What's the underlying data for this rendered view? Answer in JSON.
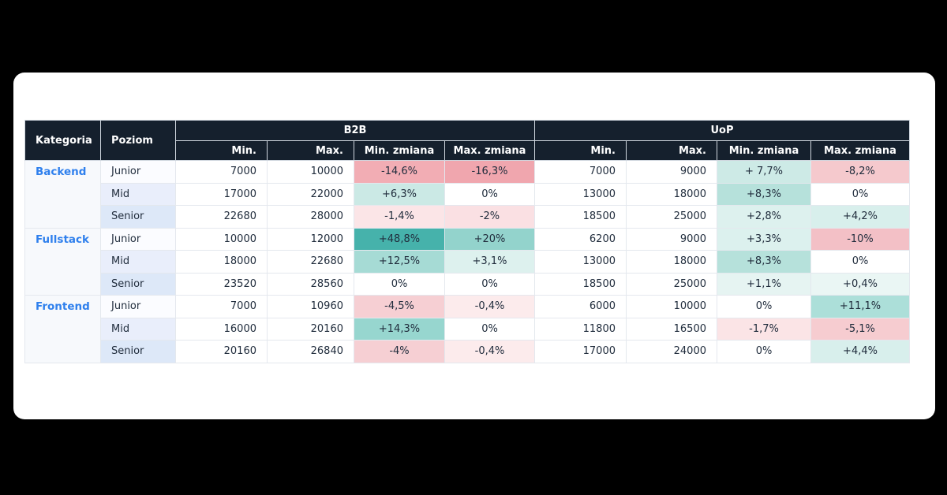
{
  "page": {
    "background": "#000000",
    "card_background": "#ffffff"
  },
  "chart_data": {
    "type": "table",
    "header": {
      "kategoria": "Kategoria",
      "poziom": "Poziom",
      "groups": [
        {
          "label": "B2B",
          "columns": [
            "Min.",
            "Max.",
            "Min. zmiana",
            "Max. zmiana"
          ]
        },
        {
          "label": "UoP",
          "columns": [
            "Min.",
            "Max.",
            "Min. zmiana",
            "Max. zmiana"
          ]
        }
      ]
    },
    "groups": [
      {
        "category": "Backend",
        "rows": [
          {
            "level": "Junior",
            "b2b": {
              "min": "7000",
              "max": "10000",
              "min_zmiana": {
                "text": "-14,6%",
                "bg": "#F2ADB4"
              },
              "max_zmiana": {
                "text": "-16,3%",
                "bg": "#F0A6AE"
              }
            },
            "uop": {
              "min": "7000",
              "max": "9000",
              "min_zmiana": {
                "text": "+ 7,7%",
                "bg": "#CDEAE6"
              },
              "max_zmiana": {
                "text": "-8,2%",
                "bg": "#F5C9CD"
              }
            }
          },
          {
            "level": "Mid",
            "b2b": {
              "min": "17000",
              "max": "22000",
              "min_zmiana": {
                "text": "+6,3%",
                "bg": "#CBE9E5"
              },
              "max_zmiana": {
                "text": "0%",
                "bg": "#FFFFFF"
              }
            },
            "uop": {
              "min": "13000",
              "max": "18000",
              "min_zmiana": {
                "text": "+8,3%",
                "bg": "#B6E1DB"
              },
              "max_zmiana": {
                "text": "0%",
                "bg": "#FFFFFF"
              }
            }
          },
          {
            "level": "Senior",
            "b2b": {
              "min": "22680",
              "max": "28000",
              "min_zmiana": {
                "text": "-1,4%",
                "bg": "#FBE5E7"
              },
              "max_zmiana": {
                "text": "-2%",
                "bg": "#FAE0E3"
              }
            },
            "uop": {
              "min": "18500",
              "max": "25000",
              "min_zmiana": {
                "text": "+2,8%",
                "bg": "#DDF1EE"
              },
              "max_zmiana": {
                "text": "+4,2%",
                "bg": "#D8EFEC"
              }
            }
          }
        ]
      },
      {
        "category": "Fullstack",
        "rows": [
          {
            "level": "Junior",
            "b2b": {
              "min": "10000",
              "max": "12000",
              "min_zmiana": {
                "text": "+48,8%",
                "bg": "#46B2AB"
              },
              "max_zmiana": {
                "text": "+20%",
                "bg": "#93D3CC"
              }
            },
            "uop": {
              "min": "6200",
              "max": "9000",
              "min_zmiana": {
                "text": "+3,3%",
                "bg": "#DCF1EE"
              },
              "max_zmiana": {
                "text": "-10%",
                "bg": "#F3C0C6"
              }
            }
          },
          {
            "level": "Mid",
            "b2b": {
              "min": "18000",
              "max": "22680",
              "min_zmiana": {
                "text": "+12,5%",
                "bg": "#A6DBD5"
              },
              "max_zmiana": {
                "text": "+3,1%",
                "bg": "#DDF1EE"
              }
            },
            "uop": {
              "min": "13000",
              "max": "18000",
              "min_zmiana": {
                "text": "+8,3%",
                "bg": "#B6E1DB"
              },
              "max_zmiana": {
                "text": "0%",
                "bg": "#FFFFFF"
              }
            }
          },
          {
            "level": "Senior",
            "b2b": {
              "min": "23520",
              "max": "28560",
              "min_zmiana": {
                "text": "0%",
                "bg": "#FFFFFF"
              },
              "max_zmiana": {
                "text": "0%",
                "bg": "#FFFFFF"
              }
            },
            "uop": {
              "min": "18500",
              "max": "25000",
              "min_zmiana": {
                "text": "+1,1%",
                "bg": "#E6F4F2"
              },
              "max_zmiana": {
                "text": "+0,4%",
                "bg": "#EAF6F4"
              }
            }
          }
        ]
      },
      {
        "category": "Frontend",
        "rows": [
          {
            "level": "Junior",
            "b2b": {
              "min": "7000",
              "max": "10960",
              "min_zmiana": {
                "text": "-4,5%",
                "bg": "#F6CFD3"
              },
              "max_zmiana": {
                "text": "-0,4%",
                "bg": "#FCEBEC"
              }
            },
            "uop": {
              "min": "6000",
              "max": "10000",
              "min_zmiana": {
                "text": "0%",
                "bg": "#FFFFFF"
              },
              "max_zmiana": {
                "text": "+11,1%",
                "bg": "#ACDFD9"
              }
            }
          },
          {
            "level": "Mid",
            "b2b": {
              "min": "16000",
              "max": "20160",
              "min_zmiana": {
                "text": "+14,3%",
                "bg": "#97D6CF"
              },
              "max_zmiana": {
                "text": "0%",
                "bg": "#FFFFFF"
              }
            },
            "uop": {
              "min": "11800",
              "max": "16500",
              "min_zmiana": {
                "text": "-1,7%",
                "bg": "#FBE4E6"
              },
              "max_zmiana": {
                "text": "-5,1%",
                "bg": "#F6CCD0"
              }
            }
          },
          {
            "level": "Senior",
            "b2b": {
              "min": "20160",
              "max": "26840",
              "min_zmiana": {
                "text": "-4%",
                "bg": "#F6CFD3"
              },
              "max_zmiana": {
                "text": "-0,4%",
                "bg": "#FCEBEC"
              }
            },
            "uop": {
              "min": "17000",
              "max": "24000",
              "min_zmiana": {
                "text": "0%",
                "bg": "#FFFFFF"
              },
              "max_zmiana": {
                "text": "+4,4%",
                "bg": "#D8EFEC"
              }
            }
          }
        ]
      }
    ],
    "colors": {
      "header_bg": "#15202D",
      "header_text": "#FFFFFF",
      "category_text": "#2F80ED",
      "category_bg": "#F7F9FC",
      "level_row_bgs": [
        "#FBFCFF",
        "#E9EEFB",
        "#DDE8F8"
      ],
      "body_text": "#212D3D",
      "border": "#E4E8EE",
      "positive_strong": "#46B2AB",
      "negative_strong": "#F0A6AE"
    }
  }
}
